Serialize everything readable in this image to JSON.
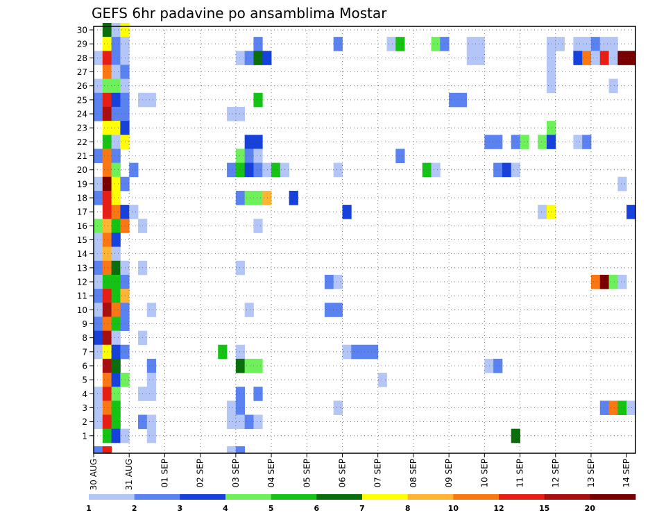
{
  "chart_data": {
    "type": "heatmap",
    "title": "GEFS 6hr padavine po ansamblima Mostar",
    "y_ticks": [
      "1",
      "2",
      "3",
      "4",
      "5",
      "6",
      "7",
      "8",
      "9",
      "10",
      "11",
      "12",
      "13",
      "14",
      "15",
      "16",
      "17",
      "18",
      "19",
      "20",
      "21",
      "22",
      "23",
      "24",
      "25",
      "26",
      "27",
      "28",
      "29",
      "30"
    ],
    "x_ticks": [
      "30 AUG",
      "31 AUG",
      "01 SEP",
      "02 SEP",
      "03 SEP",
      "04 SEP",
      "05 SEP",
      "06 SEP",
      "07 SEP",
      "08 SEP",
      "09 SEP",
      "10 SEP",
      "11 SEP",
      "12 SEP",
      "13 SEP",
      "14 SEP"
    ],
    "legend": {
      "labels": [
        "1",
        "2",
        "3",
        "4",
        "5",
        "6",
        "7",
        "8",
        "10",
        "12",
        "15",
        "20"
      ],
      "colors": [
        "#b4c6f7",
        "#5a82f0",
        "#1641dc",
        "#6ef05a",
        "#14c314",
        "#0a6e0a",
        "#ffff00",
        "#ffb432",
        "#fa7814",
        "#e61e14",
        "#aa0f0f",
        "#780000"
      ]
    },
    "cells": [
      {
        "m": 30,
        "t": [
          [
            1,
            5
          ],
          [
            2,
            0
          ],
          [
            3,
            6
          ]
        ]
      },
      {
        "m": 29,
        "t": [
          [
            1,
            6
          ],
          [
            2,
            1
          ],
          [
            3,
            0
          ],
          [
            18,
            1
          ],
          [
            27,
            1
          ],
          [
            33,
            0
          ],
          [
            34,
            4
          ],
          [
            38,
            3
          ],
          [
            39,
            1
          ],
          [
            42,
            0
          ],
          [
            43,
            0
          ],
          [
            51,
            0
          ],
          [
            52,
            0
          ],
          [
            54,
            0
          ],
          [
            55,
            0
          ],
          [
            56,
            1
          ],
          [
            57,
            0
          ],
          [
            58,
            0
          ]
        ]
      },
      {
        "m": 28,
        "t": [
          [
            0,
            0
          ],
          [
            1,
            9
          ],
          [
            2,
            1
          ],
          [
            3,
            0
          ],
          [
            16,
            0
          ],
          [
            17,
            1
          ],
          [
            18,
            5
          ],
          [
            19,
            2
          ],
          [
            42,
            0
          ],
          [
            43,
            0
          ],
          [
            51,
            0
          ],
          [
            54,
            2
          ],
          [
            55,
            8
          ],
          [
            56,
            0
          ],
          [
            57,
            9
          ],
          [
            58,
            0
          ],
          [
            59,
            11
          ],
          [
            60,
            11
          ]
        ]
      },
      {
        "m": 27,
        "t": [
          [
            1,
            8
          ],
          [
            2,
            0
          ],
          [
            3,
            1
          ],
          [
            51,
            0
          ]
        ]
      },
      {
        "m": 26,
        "t": [
          [
            0,
            0
          ],
          [
            1,
            3
          ],
          [
            2,
            3
          ],
          [
            3,
            0
          ],
          [
            51,
            0
          ],
          [
            58,
            0
          ]
        ]
      },
      {
        "m": 25,
        "t": [
          [
            0,
            1
          ],
          [
            1,
            9
          ],
          [
            2,
            2
          ],
          [
            3,
            1
          ],
          [
            5,
            0
          ],
          [
            6,
            0
          ],
          [
            18,
            4
          ],
          [
            40,
            1
          ],
          [
            41,
            1
          ]
        ]
      },
      {
        "m": 24,
        "t": [
          [
            0,
            1
          ],
          [
            1,
            10
          ],
          [
            2,
            1
          ],
          [
            3,
            1
          ],
          [
            15,
            0
          ],
          [
            16,
            0
          ]
        ]
      },
      {
        "m": 23,
        "t": [
          [
            1,
            6
          ],
          [
            2,
            6
          ],
          [
            3,
            2
          ],
          [
            51,
            3
          ]
        ]
      },
      {
        "m": 22,
        "t": [
          [
            1,
            4
          ],
          [
            2,
            0
          ],
          [
            3,
            6
          ],
          [
            17,
            2
          ],
          [
            18,
            2
          ],
          [
            44,
            1
          ],
          [
            45,
            1
          ],
          [
            47,
            1
          ],
          [
            48,
            3
          ],
          [
            50,
            3
          ],
          [
            51,
            2
          ],
          [
            54,
            0
          ],
          [
            55,
            1
          ]
        ]
      },
      {
        "m": 21,
        "t": [
          [
            0,
            1
          ],
          [
            1,
            8
          ],
          [
            2,
            1
          ],
          [
            16,
            3
          ],
          [
            17,
            1
          ],
          [
            18,
            0
          ],
          [
            34,
            1
          ]
        ]
      },
      {
        "m": 20,
        "t": [
          [
            1,
            8
          ],
          [
            2,
            3
          ],
          [
            4,
            1
          ],
          [
            15,
            1
          ],
          [
            16,
            4
          ],
          [
            17,
            2
          ],
          [
            18,
            1
          ],
          [
            19,
            0
          ],
          [
            20,
            4
          ],
          [
            21,
            0
          ],
          [
            27,
            0
          ],
          [
            37,
            4
          ],
          [
            38,
            0
          ],
          [
            45,
            1
          ],
          [
            46,
            2
          ],
          [
            47,
            0
          ]
        ]
      },
      {
        "m": 19,
        "t": [
          [
            0,
            0
          ],
          [
            1,
            11
          ],
          [
            2,
            6
          ],
          [
            3,
            1
          ],
          [
            59,
            0
          ]
        ]
      },
      {
        "m": 18,
        "t": [
          [
            0,
            1
          ],
          [
            1,
            9
          ],
          [
            2,
            6
          ],
          [
            16,
            1
          ],
          [
            17,
            3
          ],
          [
            18,
            3
          ],
          [
            19,
            7
          ],
          [
            22,
            2
          ]
        ]
      },
      {
        "m": 17,
        "t": [
          [
            1,
            9
          ],
          [
            2,
            8
          ],
          [
            3,
            2
          ],
          [
            4,
            0
          ],
          [
            28,
            2
          ],
          [
            50,
            0
          ],
          [
            51,
            6
          ],
          [
            60,
            2
          ]
        ]
      },
      {
        "m": 16,
        "t": [
          [
            0,
            3
          ],
          [
            1,
            7
          ],
          [
            2,
            4
          ],
          [
            3,
            8
          ],
          [
            5,
            0
          ],
          [
            18,
            0
          ]
        ]
      },
      {
        "m": 15,
        "t": [
          [
            0,
            0
          ],
          [
            1,
            8
          ],
          [
            2,
            2
          ]
        ]
      },
      {
        "m": 14,
        "t": [
          [
            0,
            0
          ],
          [
            1,
            7
          ],
          [
            2,
            0
          ]
        ]
      },
      {
        "m": 13,
        "t": [
          [
            0,
            1
          ],
          [
            1,
            8
          ],
          [
            2,
            5
          ],
          [
            3,
            0
          ],
          [
            5,
            0
          ],
          [
            16,
            0
          ]
        ]
      },
      {
        "m": 12,
        "t": [
          [
            0,
            0
          ],
          [
            1,
            4
          ],
          [
            2,
            4
          ],
          [
            3,
            1
          ],
          [
            26,
            1
          ],
          [
            27,
            0
          ],
          [
            56,
            8
          ],
          [
            57,
            11
          ],
          [
            58,
            3
          ],
          [
            59,
            0
          ]
        ]
      },
      {
        "m": 11,
        "t": [
          [
            0,
            1
          ],
          [
            1,
            9
          ],
          [
            2,
            4
          ],
          [
            3,
            7
          ]
        ]
      },
      {
        "m": 10,
        "t": [
          [
            0,
            0
          ],
          [
            1,
            10
          ],
          [
            2,
            8
          ],
          [
            3,
            1
          ],
          [
            6,
            0
          ],
          [
            17,
            0
          ],
          [
            26,
            1
          ],
          [
            27,
            1
          ]
        ]
      },
      {
        "m": 9,
        "t": [
          [
            0,
            1
          ],
          [
            1,
            8
          ],
          [
            2,
            4
          ],
          [
            3,
            1
          ]
        ]
      },
      {
        "m": 8,
        "t": [
          [
            0,
            2
          ],
          [
            1,
            10
          ],
          [
            2,
            0
          ],
          [
            5,
            0
          ]
        ]
      },
      {
        "m": 7,
        "t": [
          [
            0,
            0
          ],
          [
            1,
            6
          ],
          [
            2,
            2
          ],
          [
            3,
            1
          ],
          [
            14,
            4
          ],
          [
            16,
            0
          ],
          [
            28,
            0
          ],
          [
            29,
            1
          ],
          [
            30,
            1
          ],
          [
            31,
            1
          ]
        ]
      },
      {
        "m": 6,
        "t": [
          [
            1,
            10
          ],
          [
            2,
            5
          ],
          [
            6,
            1
          ],
          [
            16,
            5
          ],
          [
            17,
            3
          ],
          [
            18,
            3
          ],
          [
            44,
            0
          ],
          [
            45,
            1
          ]
        ]
      },
      {
        "m": 5,
        "t": [
          [
            1,
            8
          ],
          [
            2,
            2
          ],
          [
            3,
            3
          ],
          [
            6,
            0
          ],
          [
            32,
            0
          ]
        ]
      },
      {
        "m": 4,
        "t": [
          [
            0,
            0
          ],
          [
            1,
            9
          ],
          [
            2,
            3
          ],
          [
            5,
            0
          ],
          [
            6,
            0
          ],
          [
            16,
            1
          ],
          [
            18,
            1
          ]
        ]
      },
      {
        "m": 3,
        "t": [
          [
            0,
            0
          ],
          [
            1,
            8
          ],
          [
            2,
            4
          ],
          [
            15,
            0
          ],
          [
            16,
            1
          ],
          [
            27,
            0
          ],
          [
            57,
            1
          ],
          [
            58,
            8
          ],
          [
            59,
            4
          ],
          [
            60,
            0
          ]
        ]
      },
      {
        "m": 2,
        "t": [
          [
            0,
            0
          ],
          [
            1,
            9
          ],
          [
            2,
            4
          ],
          [
            5,
            1
          ],
          [
            6,
            0
          ],
          [
            15,
            0
          ],
          [
            16,
            0
          ],
          [
            17,
            1
          ],
          [
            18,
            0
          ]
        ]
      },
      {
        "m": 1,
        "t": [
          [
            1,
            4
          ],
          [
            2,
            2
          ],
          [
            3,
            0
          ],
          [
            6,
            0
          ],
          [
            47,
            5
          ]
        ]
      },
      {
        "m": 0,
        "t": [
          [
            0,
            1
          ],
          [
            1,
            9
          ],
          [
            15,
            0
          ],
          [
            16,
            1
          ]
        ]
      }
    ]
  }
}
